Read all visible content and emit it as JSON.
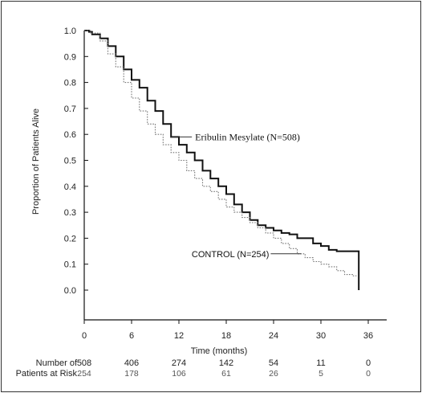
{
  "chart_data": {
    "type": "line",
    "title": "",
    "xlabel": "Time (months)",
    "ylabel": "Proportion of Patients Alive",
    "xlim": [
      0,
      36
    ],
    "ylim": [
      0,
      1
    ],
    "x_ticks": [
      "0",
      "6",
      "12",
      "18",
      "24",
      "30",
      "36"
    ],
    "y_ticks": [
      "0.0",
      "0.1",
      "0.2",
      "0.3",
      "0.4",
      "0.5",
      "0.6",
      "0.7",
      "0.8",
      "0.9",
      "1.0"
    ],
    "grid": false,
    "series": [
      {
        "name": "Eribulin Mesylate (N=508)",
        "style": "solid",
        "color": "#111111",
        "points": [
          [
            0,
            1.0
          ],
          [
            0.6,
            0.995
          ],
          [
            1.0,
            0.985
          ],
          [
            2.0,
            0.97
          ],
          [
            3.0,
            0.94
          ],
          [
            4.0,
            0.9
          ],
          [
            5.0,
            0.85
          ],
          [
            6.0,
            0.81
          ],
          [
            7.0,
            0.78
          ],
          [
            8.0,
            0.73
          ],
          [
            9.0,
            0.69
          ],
          [
            10.0,
            0.64
          ],
          [
            11.0,
            0.59
          ],
          [
            12.0,
            0.56
          ],
          [
            13.0,
            0.53
          ],
          [
            14.0,
            0.5
          ],
          [
            15.0,
            0.46
          ],
          [
            16.0,
            0.43
          ],
          [
            17.0,
            0.4
          ],
          [
            18.0,
            0.37
          ],
          [
            19.0,
            0.33
          ],
          [
            20.0,
            0.3
          ],
          [
            21.0,
            0.27
          ],
          [
            22.0,
            0.25
          ],
          [
            23.0,
            0.24
          ],
          [
            24.0,
            0.23
          ],
          [
            25.0,
            0.22
          ],
          [
            26.0,
            0.215
          ],
          [
            27.0,
            0.2
          ],
          [
            28.0,
            0.2
          ],
          [
            29.0,
            0.18
          ],
          [
            30.0,
            0.17
          ],
          [
            31.0,
            0.155
          ],
          [
            32.0,
            0.15
          ],
          [
            34.8,
            0.15
          ],
          [
            34.8,
            0.0
          ]
        ]
      },
      {
        "name": "CONTROL (N=254)",
        "style": "dotted",
        "color": "#777777",
        "points": [
          [
            0,
            1.0
          ],
          [
            0.8,
            0.99
          ],
          [
            2.0,
            0.96
          ],
          [
            3.0,
            0.91
          ],
          [
            4.0,
            0.86
          ],
          [
            5.0,
            0.8
          ],
          [
            6.0,
            0.74
          ],
          [
            7.0,
            0.69
          ],
          [
            8.0,
            0.64
          ],
          [
            9.0,
            0.6
          ],
          [
            10.0,
            0.56
          ],
          [
            11.0,
            0.53
          ],
          [
            12.0,
            0.5
          ],
          [
            13.0,
            0.46
          ],
          [
            14.0,
            0.43
          ],
          [
            15.0,
            0.4
          ],
          [
            16.0,
            0.38
          ],
          [
            17.0,
            0.35
          ],
          [
            18.0,
            0.32
          ],
          [
            19.0,
            0.3
          ],
          [
            20.0,
            0.28
          ],
          [
            21.0,
            0.26
          ],
          [
            22.0,
            0.24
          ],
          [
            23.0,
            0.22
          ],
          [
            24.0,
            0.2
          ],
          [
            25.0,
            0.18
          ],
          [
            26.0,
            0.16
          ],
          [
            27.0,
            0.14
          ],
          [
            28.0,
            0.125
          ],
          [
            29.0,
            0.11
          ],
          [
            30.0,
            0.1
          ],
          [
            31.0,
            0.09
          ],
          [
            32.0,
            0.075
          ],
          [
            33.0,
            0.06
          ],
          [
            34.0,
            0.055
          ],
          [
            34.5,
            0.055
          ]
        ]
      }
    ],
    "annotations": [
      {
        "text": "Eribulin Mesylate (N=508)",
        "series": 0,
        "at_x": 11.0
      },
      {
        "text": "CONTROL (N=254)",
        "series": 1,
        "at_x": 27.5
      }
    ],
    "risk_table": {
      "label_line1": "Number of",
      "label_line2": "Patients at Risk",
      "times": [
        0,
        6,
        12,
        18,
        24,
        30,
        36
      ],
      "eribulin": [
        "508",
        "406",
        "274",
        "142",
        "54",
        "11",
        "0"
      ],
      "control": [
        "254",
        "178",
        "106",
        "61",
        "26",
        "5",
        "0"
      ]
    }
  }
}
